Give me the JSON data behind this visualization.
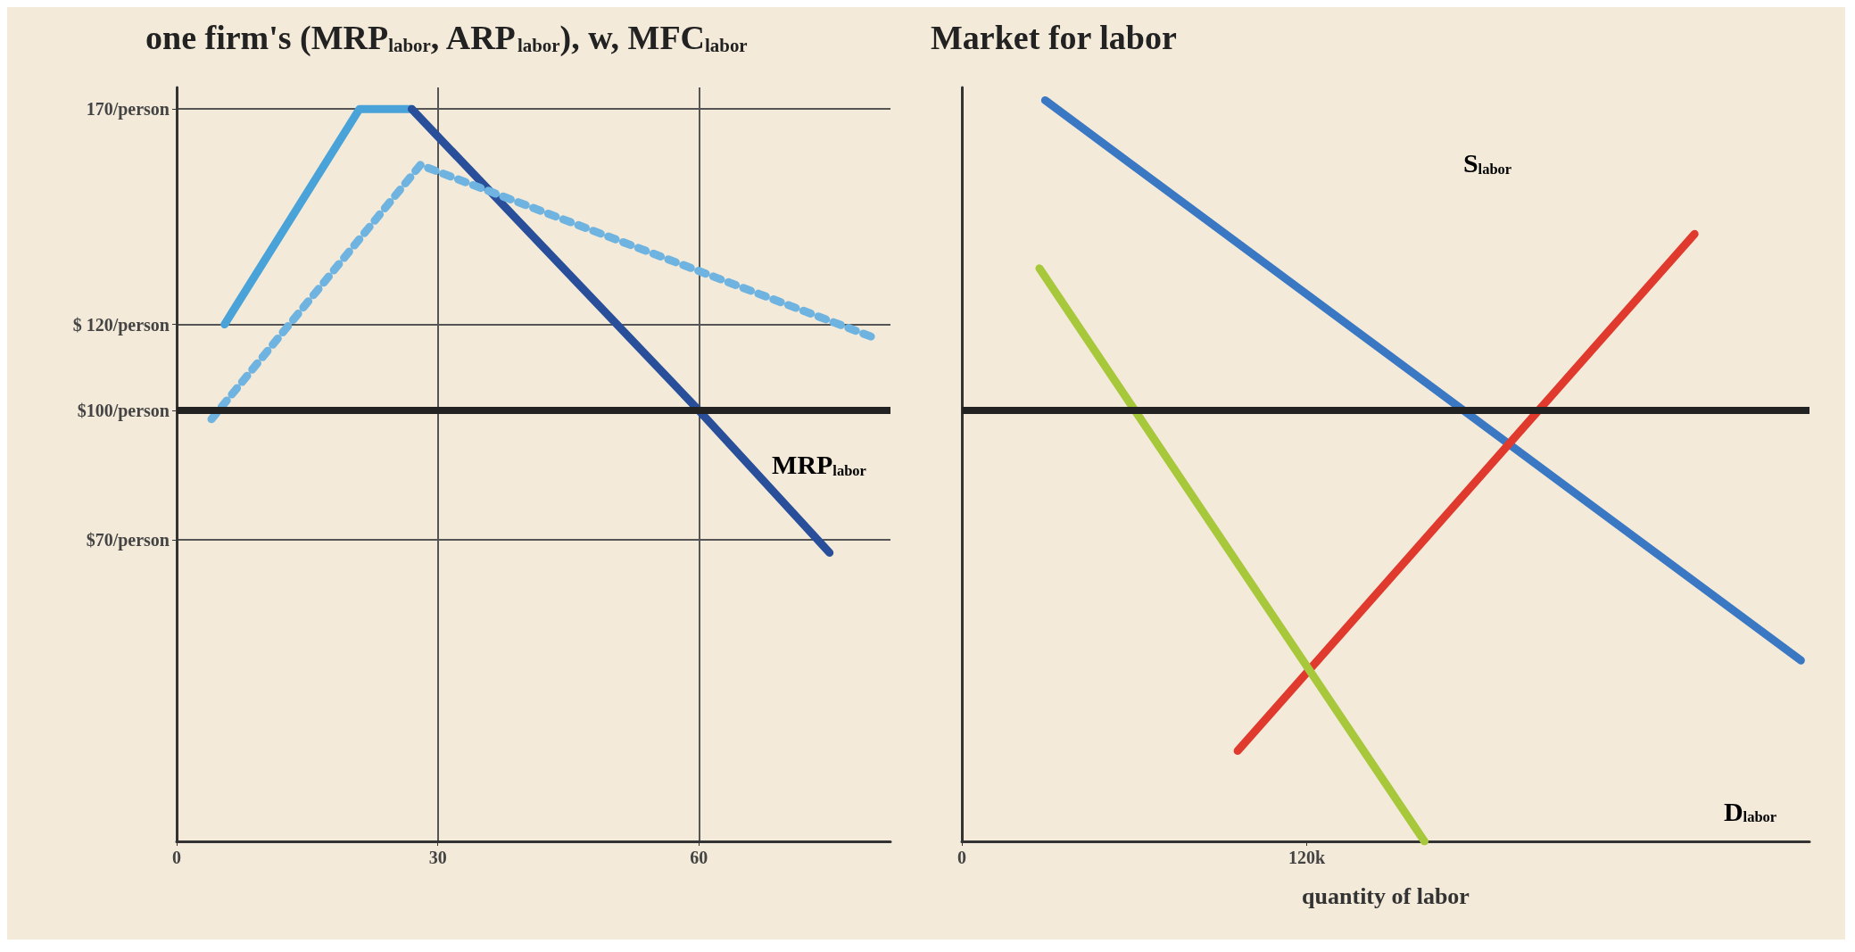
{
  "chart_data": [
    {
      "type": "line",
      "title": "one firm's (MRP$_{labor}$, ARP$_{labor}$), w, MFC$_{labor}$",
      "xlim": [
        0,
        82
      ],
      "xticks": [
        0,
        30,
        60
      ],
      "ylim": [
        0,
        175
      ],
      "yticks": [
        {
          "value": 70,
          "label": "$70/person"
        },
        {
          "value": 100,
          "label": "$100/person"
        },
        {
          "value": 120,
          "label": "$ 120/person"
        },
        {
          "value": 170,
          "label": "170/person"
        }
      ],
      "grid": true,
      "marker": "none",
      "series": [
        {
          "color": "#4aa3d8",
          "x": [
            5.5,
            21,
            27
          ],
          "values": [
            120,
            170,
            170
          ]
        },
        {
          "color": "#2a4f9a",
          "x": [
            27,
            60,
            75
          ],
          "values": [
            170,
            100,
            67
          ]
        },
        {
          "color": "#6fb3e0",
          "line_style": "dotted",
          "x": [
            4,
            28,
            80
          ],
          "values": [
            98,
            157,
            117
          ]
        }
      ],
      "ref_lines": [
        {
          "axis": "y",
          "value": 100,
          "color": "#222222"
        }
      ],
      "annotations": [
        "MRP$_{labor}$"
      ]
    },
    {
      "type": "line",
      "title": "Market for labor",
      "xlabel": "quantity of labor",
      "xlim": [
        0,
        295000
      ],
      "xticks": [
        0,
        {
          "value": 120000,
          "label": "120k"
        }
      ],
      "ylim": [
        0,
        175
      ],
      "tick_labels": "x",
      "marker": "none",
      "series": [
        {
          "color": "#3b78c4",
          "x": [
            29000,
            292000
          ],
          "values": [
            172,
            42
          ]
        },
        {
          "color": "#e03a2e",
          "x": [
            96000,
            255000
          ],
          "values": [
            21,
            141
          ]
        },
        {
          "color": "#a8c83c",
          "x": [
            27000,
            161000
          ],
          "values": [
            133,
            0
          ]
        }
      ],
      "ref_lines": [
        {
          "axis": "y",
          "value": 100,
          "color": "#222222"
        }
      ],
      "annotations": [
        "S$_{labor}$",
        "D$_{labor}$"
      ]
    }
  ]
}
